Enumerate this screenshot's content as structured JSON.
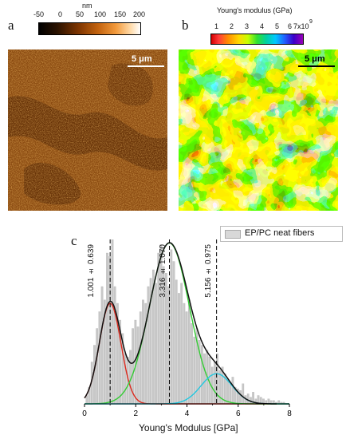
{
  "panel_a": {
    "label": "a",
    "colorbar_unit": "nm",
    "colorbar_ticks": [
      "-50",
      "0",
      "50",
      "100",
      "150",
      "200"
    ],
    "scale_bar": "5 μm"
  },
  "panel_b": {
    "label": "b",
    "colorbar_title": "Young's modulus (GPa)",
    "colorbar_ticks": [
      "1",
      "2",
      "3",
      "4",
      "5",
      "6"
    ],
    "colorbar_last_tick": "7x10",
    "colorbar_exponent": "9",
    "scale_bar": "5 μm"
  },
  "panel_c": {
    "label": "c",
    "legend": "EP/PC neat fibers",
    "peak_labels": [
      "1.001 ± 0.639",
      "3.316 ± 1.070",
      "5.156 ± 0.975"
    ]
  },
  "chart_data": {
    "type": "bar",
    "xlabel": "Young's Modulus [GPa]",
    "ylabel": "",
    "xlim": [
      0,
      8
    ],
    "x_ticks": [
      "0",
      "2",
      "4",
      "6",
      "8"
    ],
    "colors": {
      "gaussian_1": "#dd2a1e",
      "gaussian_2": "#33cc33",
      "gaussian_3": "#22c8e0",
      "envelope": "#111111",
      "histogram": "#c8c8c8"
    },
    "series": [
      {
        "name": "EP/PC neat fibers",
        "kind": "histogram",
        "bin_width": 0.1,
        "x": [
          0.1,
          0.2,
          0.3,
          0.4,
          0.5,
          0.6,
          0.7,
          0.8,
          0.9,
          1.0,
          1.1,
          1.2,
          1.3,
          1.4,
          1.5,
          1.6,
          1.7,
          1.8,
          1.9,
          2.0,
          2.1,
          2.2,
          2.3,
          2.4,
          2.5,
          2.6,
          2.7,
          2.8,
          2.9,
          3.0,
          3.1,
          3.2,
          3.3,
          3.4,
          3.5,
          3.6,
          3.7,
          3.8,
          3.9,
          4.0,
          4.1,
          4.2,
          4.3,
          4.4,
          4.5,
          4.6,
          4.7,
          4.8,
          4.9,
          5.0,
          5.1,
          5.2,
          5.3,
          5.4,
          5.5,
          5.6,
          5.7,
          5.8,
          5.9,
          6.0,
          6.1,
          6.2,
          6.3,
          6.4,
          6.5,
          6.6,
          6.7,
          6.8,
          6.9,
          7.0,
          7.1,
          7.2,
          7.3,
          7.4,
          7.5,
          7.6,
          7.7,
          7.8
        ],
        "values": [
          0.05,
          0.1,
          0.25,
          0.35,
          0.45,
          0.55,
          0.7,
          0.62,
          0.9,
          0.88,
          0.98,
          0.7,
          0.6,
          0.5,
          0.42,
          0.3,
          0.28,
          0.32,
          0.45,
          0.5,
          0.46,
          0.55,
          0.62,
          0.6,
          0.7,
          0.75,
          0.8,
          0.72,
          0.9,
          0.95,
          0.82,
          0.78,
          0.7,
          0.92,
          0.85,
          0.74,
          0.66,
          0.72,
          0.6,
          0.55,
          0.62,
          0.48,
          0.4,
          0.45,
          0.38,
          0.35,
          0.3,
          0.32,
          0.28,
          0.22,
          0.25,
          0.3,
          0.2,
          0.22,
          0.18,
          0.15,
          0.12,
          0.16,
          0.1,
          0.09,
          0.08,
          0.12,
          0.05,
          0.06,
          0.04,
          0.07,
          0.03,
          0.05,
          0.04,
          0.03,
          0.02,
          0.03,
          0.02,
          0.02,
          0.01,
          0.02,
          0.01,
          0.01
        ]
      },
      {
        "name": "",
        "kind": "gaussian",
        "mean": 1.001,
        "sd": 0.42,
        "peak": 0.6
      },
      {
        "name": "",
        "kind": "gaussian",
        "mean": 3.316,
        "sd": 0.78,
        "peak": 0.96
      },
      {
        "name": "",
        "kind": "gaussian",
        "mean": 5.156,
        "sd": 0.6,
        "peak": 0.18
      }
    ],
    "peak_markers": [
      1.001,
      3.316,
      5.156
    ]
  }
}
